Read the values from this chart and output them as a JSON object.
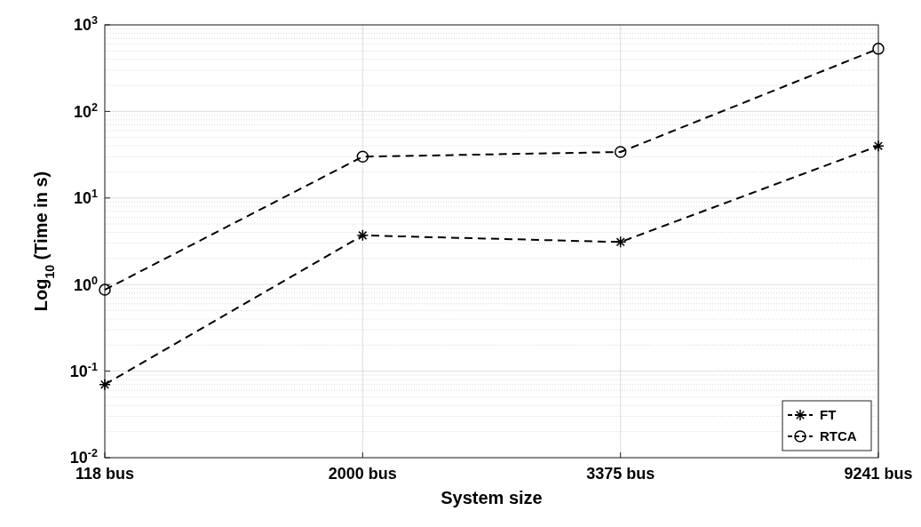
{
  "chart_data": {
    "type": "line",
    "xlabel": "System size",
    "ylabel": "Log$_{10}$ (Time in s)",
    "categories": [
      "118 bus",
      "2000 bus",
      "3375 bus",
      "9241 bus"
    ],
    "series": [
      {
        "name": "FT",
        "color": "#000000",
        "marker": "cross",
        "values": [
          0.07,
          3.7,
          3.1,
          40
        ]
      },
      {
        "name": "RTCA",
        "color": "#000000",
        "marker": "circle",
        "values": [
          0.87,
          30,
          34,
          530
        ]
      }
    ],
    "log": "y",
    "ylim": [
      0.01,
      1000
    ],
    "yticks": [
      {
        "value": 0.01,
        "label": "10$^{-2}$"
      },
      {
        "value": 0.1,
        "label": "10$^{-1}$"
      },
      {
        "value": 1,
        "label": "10$^{0}$"
      },
      {
        "value": 10,
        "label": "10$^{1}$"
      },
      {
        "value": 100,
        "label": "10$^{2}$"
      },
      {
        "value": 1000,
        "label": "10$^{3}$"
      }
    ],
    "grid": true,
    "legend": "bottom right",
    "line_style": "dashed"
  }
}
